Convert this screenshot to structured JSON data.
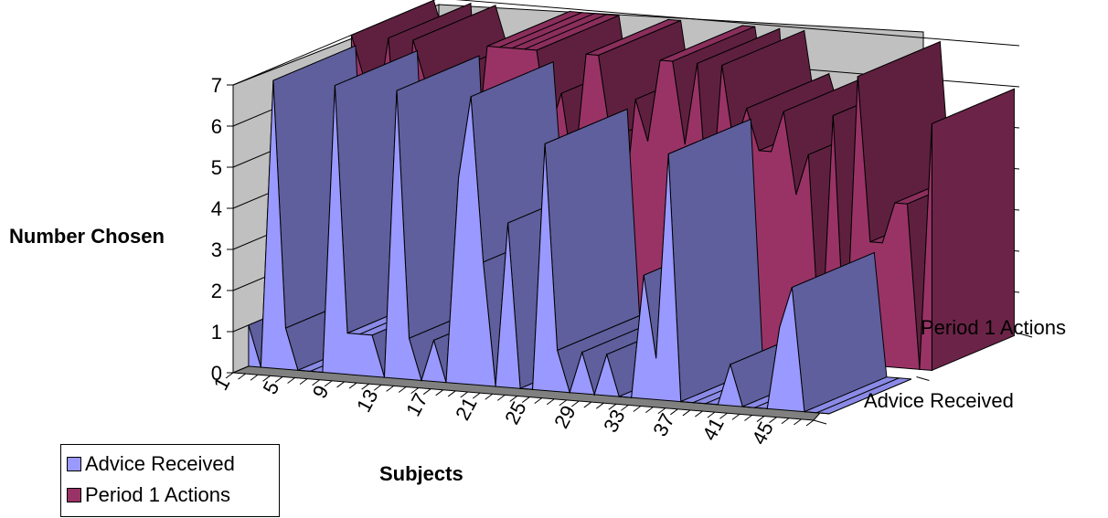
{
  "chart_data": {
    "type": "area",
    "view": "3d",
    "ylabel": "Number Chosen",
    "xlabel": "Subjects",
    "ylim": [
      0,
      7
    ],
    "yticks": [
      0,
      1,
      2,
      3,
      4,
      5,
      6,
      7
    ],
    "x": [
      1,
      2,
      3,
      4,
      5,
      6,
      7,
      8,
      9,
      10,
      11,
      12,
      13,
      14,
      15,
      16,
      17,
      18,
      19,
      20,
      21,
      22,
      23,
      24,
      25,
      26,
      27,
      28,
      29,
      30,
      31,
      32,
      33,
      34,
      35,
      36,
      37,
      38,
      39,
      40,
      41,
      42,
      43,
      44,
      45,
      46,
      47,
      48
    ],
    "x_tick_labels": [
      "1",
      "5",
      "9",
      "13",
      "17",
      "21",
      "25",
      "29",
      "33",
      "37",
      "41",
      "45"
    ],
    "series_order_labels": [
      "Advice Received",
      "Period 1 Actions"
    ],
    "series": [
      {
        "name": "Advice Received",
        "color": "#9999ff",
        "values": [
          1,
          0,
          7,
          1,
          0,
          0,
          0,
          7,
          1,
          1,
          1,
          0,
          7,
          1,
          0,
          1,
          0,
          5,
          7,
          3,
          0,
          4,
          0,
          0,
          6,
          1,
          0,
          1,
          0,
          1,
          0,
          0,
          3,
          1,
          6,
          0,
          0,
          0,
          0,
          1,
          0,
          0,
          0,
          2,
          3,
          0,
          0,
          0
        ]
      },
      {
        "name": "Period 1 Actions",
        "color": "#993366",
        "values": [
          7,
          6,
          5,
          7,
          3,
          7,
          6,
          3,
          4,
          3,
          4,
          7,
          7,
          7,
          7,
          7,
          5,
          6,
          4,
          7,
          7,
          5,
          3,
          6,
          5,
          7,
          7,
          5,
          7,
          3,
          7,
          5,
          6,
          5,
          5,
          6,
          4,
          5,
          0,
          6,
          0,
          7,
          3,
          3,
          4,
          4,
          0,
          6
        ]
      }
    ],
    "grid": true,
    "legend_position": "bottom-left"
  }
}
